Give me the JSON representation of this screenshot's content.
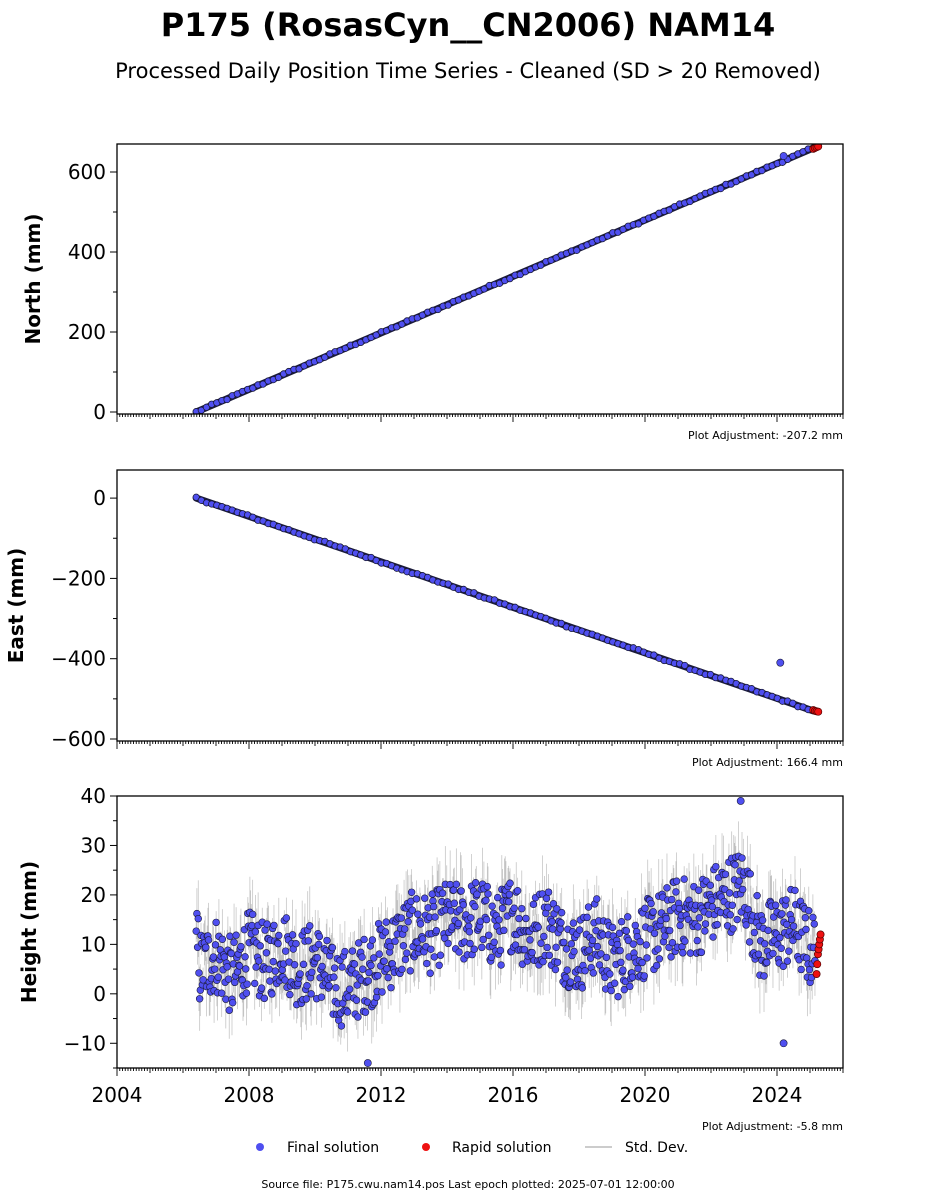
{
  "figure": {
    "title": "P175 (RosasCyn__CN2006) NAM14",
    "subtitle": "Processed Daily Position Time Series - Cleaned (SD > 20 Removed)",
    "footer": "Source file: P175.cwu.nam14.pos  Last epoch plotted: 2025-07-01 12:00:00"
  },
  "legend": {
    "placement": "bottom-center",
    "items": [
      {
        "label": "Final solution",
        "color": "#4f4ff0",
        "icon": "dot-marker"
      },
      {
        "label": "Rapid solution",
        "color": "#ee1111",
        "icon": "dot-marker"
      },
      {
        "label": "Std. Dev.",
        "color": "#cccccc",
        "icon": "line-marker"
      }
    ]
  },
  "colors": {
    "final": "#4f4ff0",
    "rapid": "#ee1111",
    "stddev": "#808080",
    "edge": "#1a1a3a"
  },
  "chart_data": [
    {
      "type": "scatter",
      "ylabel": "North (mm)",
      "adjustment": "Plot Adjustment: -207.2 mm",
      "xlim": [
        2004,
        2026
      ],
      "ylim": [
        -5,
        670
      ],
      "yticks": [
        0,
        200,
        400,
        600
      ],
      "grid": false,
      "trend": {
        "start": [
          2006.4,
          0
        ],
        "end": [
          2025.1,
          660
        ]
      },
      "series": [
        {
          "key": "final",
          "x": [
            2006.4,
            2008,
            2010,
            2012,
            2014,
            2016,
            2018,
            2020,
            2022,
            2024,
            2025.1
          ],
          "values": [
            0,
            55,
            125,
            195,
            265,
            335,
            405,
            475,
            545,
            620,
            660
          ]
        },
        {
          "key": "rapid",
          "x": [
            2025.1,
            2025.15,
            2025.2,
            2025.25
          ],
          "values": [
            658,
            660,
            662,
            664
          ]
        }
      ],
      "outliers": [
        {
          "x": 2024.2,
          "y": 640
        }
      ]
    },
    {
      "type": "scatter",
      "ylabel": "East (mm)",
      "adjustment": "Plot Adjustment: 166.4 mm",
      "xlim": [
        2004,
        2026
      ],
      "ylim": [
        -605,
        70
      ],
      "yticks": [
        0,
        -200,
        -400,
        -600
      ],
      "ytick_labels": [
        "0",
        "−200",
        "−400",
        "−600"
      ],
      "grid": false,
      "trend": {
        "start": [
          2006.4,
          0
        ],
        "end": [
          2025.1,
          -530
        ]
      },
      "series": [
        {
          "key": "final",
          "x": [
            2006.4,
            2008,
            2010,
            2012,
            2014,
            2016,
            2018,
            2020,
            2022,
            2024,
            2025.1
          ],
          "values": [
            0,
            -45,
            -100,
            -150,
            -210,
            -260,
            -320,
            -375,
            -430,
            -490,
            -530
          ]
        },
        {
          "key": "rapid",
          "x": [
            2025.1,
            2025.15,
            2025.2,
            2025.25
          ],
          "values": [
            -528,
            -530,
            -531,
            -532
          ]
        }
      ],
      "outliers": [
        {
          "x": 2024.1,
          "y": -410
        }
      ]
    },
    {
      "type": "scatter",
      "ylabel": "Height (mm)",
      "adjustment": "Plot Adjustment: -5.8 mm",
      "xlim": [
        2004,
        2026
      ],
      "ylim": [
        -15,
        40
      ],
      "yticks": [
        40,
        30,
        20,
        10,
        0,
        -10
      ],
      "ytick_labels": [
        "40",
        "30",
        "20",
        "10",
        "0",
        "−10"
      ],
      "xticks": [
        2004,
        2008,
        2012,
        2016,
        2020,
        2024
      ],
      "grid": false,
      "series": [
        {
          "key": "final",
          "x": [
            2006.5,
            2007,
            2007.5,
            2008,
            2008.5,
            2009,
            2009.5,
            2010,
            2010.5,
            2011,
            2011.5,
            2012,
            2012.5,
            2013,
            2013.5,
            2014,
            2014.5,
            2015,
            2015.5,
            2016,
            2016.5,
            2017,
            2017.5,
            2018,
            2018.5,
            2019,
            2019.5,
            2020,
            2020.5,
            2021,
            2021.5,
            2022,
            2022.5,
            2023,
            2023.5,
            2024,
            2024.5,
            2025
          ],
          "values": [
            5,
            8,
            3,
            9,
            6,
            10,
            5,
            7,
            2,
            1,
            4,
            7,
            10,
            13,
            12,
            15,
            14,
            16,
            12,
            17,
            11,
            15,
            10,
            8,
            12,
            6,
            9,
            11,
            13,
            16,
            15,
            18,
            20,
            22,
            10,
            12,
            14,
            9
          ]
        },
        {
          "key": "rapid",
          "x": [
            2025.2,
            2025.22,
            2025.24,
            2025.26,
            2025.28,
            2025.3,
            2025.32
          ],
          "values": [
            4,
            6,
            8,
            9,
            10,
            11,
            12
          ]
        }
      ],
      "outliers": [
        {
          "x": 2022.9,
          "y": 39
        },
        {
          "x": 2024.2,
          "y": -10
        },
        {
          "x": 2011.6,
          "y": -14
        }
      ]
    }
  ]
}
